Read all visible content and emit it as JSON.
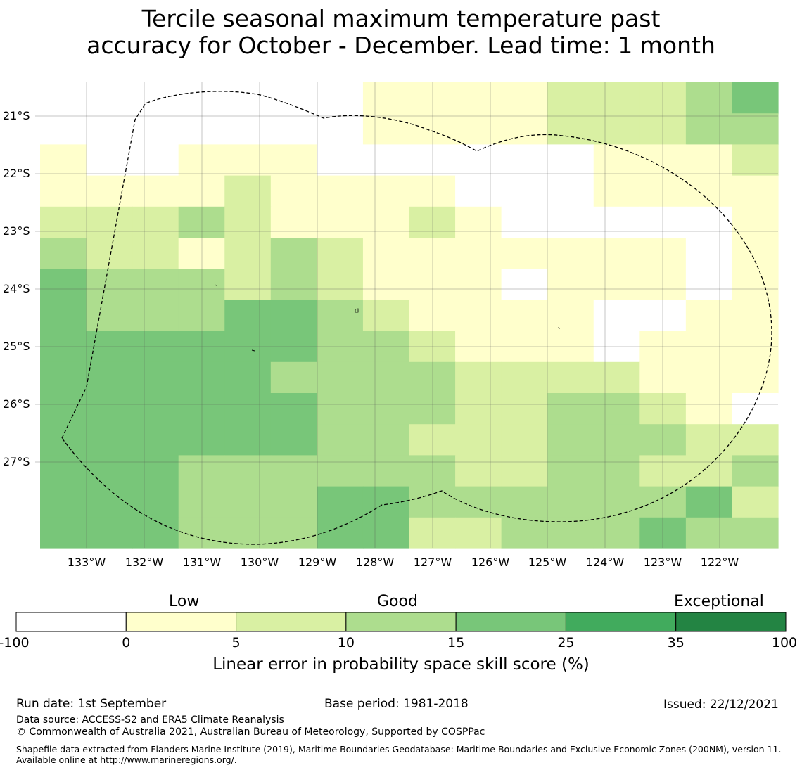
{
  "title": {
    "line1": "Tercile seasonal maximum temperature past",
    "line2": "accuracy for October - December. Lead time: 1 month"
  },
  "map": {
    "lat_labels": [
      "21°S",
      "22°S",
      "23°S",
      "24°S",
      "25°S",
      "26°S",
      "27°S"
    ],
    "lon_labels": [
      "133°W",
      "132°W",
      "131°W",
      "130°W",
      "129°W",
      "128°W",
      "127°W",
      "126°W",
      "125°W",
      "124°W",
      "123°W",
      "122°W"
    ],
    "grid_rows": [
      "0000000111122234",
      "0000000111122233",
      "1001110000001112",
      "1111211110001111",
      "2223211121000001",
      "3221232111111101",
      "4333232111011101",
      "4333443211110011",
      "4444443321110111",
      "4444433332222111",
      "4444443332233210",
      "4444443322233322",
      "4443333332233223",
      "4443334433333342",
      "4443334422333433"
    ],
    "level_colors": [
      "#ffffff",
      "#ffffcc",
      "#d9f0a3",
      "#addd8e",
      "#78c679",
      "#41ab5d",
      "#238443"
    ],
    "outline_color": "#000000"
  },
  "colorbar": {
    "category_labels": [
      "Low",
      "Good",
      "Exceptional"
    ],
    "ticks": [
      "-100",
      "0",
      "5",
      "10",
      "15",
      "25",
      "35",
      "100"
    ],
    "colors": [
      "#ffffff",
      "#ffffcc",
      "#d9f0a3",
      "#addd8e",
      "#78c679",
      "#41ab5d",
      "#238443"
    ],
    "label": "Linear error in probability space skill score (%)"
  },
  "footer": {
    "run_date": "Run date: 1st September",
    "base_period": "Base period: 1981-2018",
    "issued": "Issued: 22/12/2021",
    "data_source": "Data source: ACCESS-S2 and ERA5 Climate Reanalysis",
    "copyright": "© Commonwealth of Australia 2021, Australian Bureau of Meteorology, Supported by COSPPac",
    "shapefile": "Shapefile data extracted from Flanders Marine Institute (2019), Maritime Boundaries Geodatabase: Maritime Boundaries and Exclusive Economic Zones (200NM), version 11. Available online at http://www.marineregions.org/."
  }
}
